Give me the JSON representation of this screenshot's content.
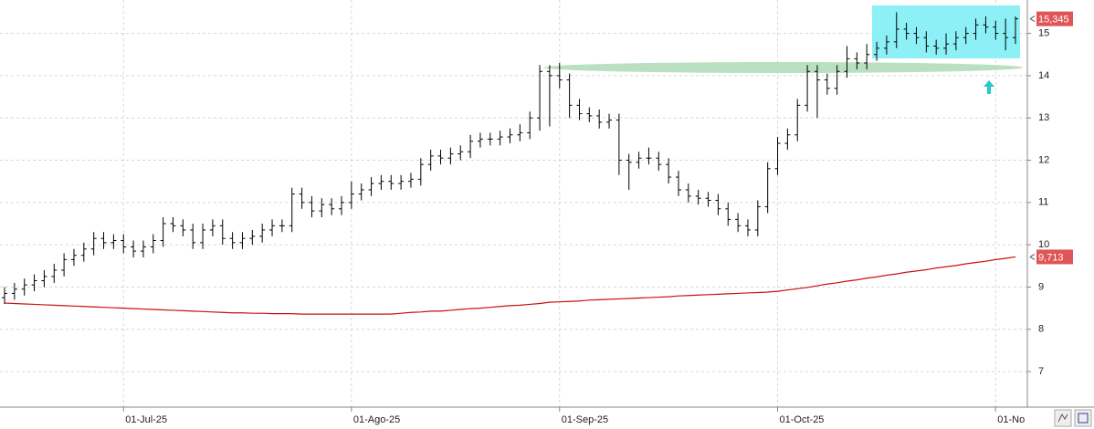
{
  "chart_data": {
    "type": "ohlc",
    "categories": [
      null,
      null,
      null,
      null,
      null,
      null,
      null,
      null,
      null,
      null,
      null,
      null,
      "01-Jul-25",
      null,
      null,
      null,
      null,
      null,
      null,
      null,
      null,
      null,
      null,
      null,
      null,
      null,
      null,
      null,
      null,
      null,
      null,
      null,
      null,
      null,
      null,
      "01-Ago-25",
      null,
      null,
      null,
      null,
      null,
      null,
      null,
      null,
      null,
      null,
      null,
      null,
      null,
      null,
      null,
      null,
      null,
      null,
      null,
      null,
      "01-Sep-25",
      null,
      null,
      null,
      null,
      null,
      null,
      null,
      null,
      null,
      null,
      null,
      null,
      null,
      null,
      null,
      null,
      null,
      null,
      null,
      null,
      null,
      "01-Oct-25",
      null,
      null,
      null,
      null,
      null,
      null,
      null,
      null,
      null,
      null,
      null,
      null,
      null,
      null,
      null,
      null,
      null,
      null,
      null,
      null,
      null,
      "01-No",
      null,
      null
    ],
    "open": [
      8.75,
      8.85,
      8.95,
      9.05,
      9.15,
      9.25,
      9.4,
      9.65,
      9.75,
      9.9,
      10.15,
      10.05,
      10.1,
      9.95,
      9.85,
      9.95,
      10.1,
      10.5,
      10.45,
      10.35,
      10.05,
      10.35,
      10.45,
      10.15,
      10.05,
      10.15,
      10.2,
      10.35,
      10.45,
      10.45,
      11.2,
      11.0,
      10.8,
      10.95,
      10.85,
      11.0,
      11.2,
      11.3,
      11.45,
      11.5,
      11.45,
      11.5,
      11.55,
      11.9,
      12.1,
      12.05,
      12.15,
      12.2,
      12.45,
      12.5,
      12.5,
      12.55,
      12.6,
      12.65,
      13.0,
      14.1,
      14.0,
      13.9,
      13.3,
      13.1,
      13.05,
      12.9,
      12.95,
      12.0,
      11.95,
      12.05,
      12.05,
      11.9,
      11.6,
      11.3,
      11.15,
      11.1,
      11.05,
      10.85,
      10.6,
      10.45,
      10.35,
      10.9,
      11.8,
      12.4,
      12.6,
      13.3,
      14.1,
      13.9,
      13.7,
      14.1,
      14.4,
      14.3,
      14.5,
      14.65,
      14.8,
      15.1,
      15.0,
      14.9,
      14.7,
      14.65,
      14.75,
      14.9,
      15.0,
      15.2,
      15.15,
      15.0,
      14.9
    ],
    "high": [
      9.0,
      9.1,
      9.2,
      9.3,
      9.4,
      9.55,
      9.8,
      9.9,
      10.05,
      10.3,
      10.3,
      10.25,
      10.25,
      10.1,
      10.1,
      10.25,
      10.65,
      10.65,
      10.6,
      10.5,
      10.5,
      10.6,
      10.6,
      10.3,
      10.3,
      10.35,
      10.5,
      10.6,
      10.6,
      11.35,
      11.35,
      11.15,
      11.1,
      11.1,
      11.15,
      11.5,
      11.45,
      11.6,
      11.65,
      11.65,
      11.65,
      11.7,
      12.05,
      12.25,
      12.25,
      12.3,
      12.35,
      12.6,
      12.65,
      12.65,
      12.7,
      12.75,
      12.85,
      13.15,
      14.25,
      14.25,
      14.3,
      14.05,
      13.45,
      13.25,
      13.2,
      13.1,
      13.1,
      12.15,
      12.2,
      12.3,
      12.2,
      12.05,
      11.75,
      11.45,
      11.3,
      11.25,
      11.2,
      11.0,
      10.75,
      10.6,
      11.05,
      11.95,
      12.55,
      12.75,
      13.45,
      14.25,
      14.25,
      14.05,
      14.25,
      14.7,
      14.55,
      14.75,
      14.8,
      14.95,
      15.5,
      15.25,
      15.15,
      15.05,
      14.85,
      15.0,
      15.05,
      15.15,
      15.35,
      15.4,
      15.3,
      15.35,
      15.4
    ],
    "low": [
      8.6,
      8.7,
      8.8,
      8.9,
      9.0,
      9.1,
      9.25,
      9.5,
      9.6,
      9.75,
      9.9,
      9.9,
      9.8,
      9.7,
      9.7,
      9.8,
      9.95,
      10.3,
      10.2,
      9.9,
      9.9,
      10.2,
      10.0,
      9.9,
      9.9,
      10.0,
      10.05,
      10.2,
      10.3,
      10.3,
      10.85,
      10.65,
      10.65,
      10.7,
      10.7,
      10.85,
      11.05,
      11.15,
      11.3,
      11.3,
      11.3,
      11.35,
      11.4,
      11.75,
      11.9,
      11.9,
      12.0,
      12.05,
      12.3,
      12.35,
      12.35,
      12.4,
      12.45,
      12.5,
      12.7,
      12.8,
      13.7,
      13.0,
      12.95,
      12.9,
      12.75,
      12.75,
      11.65,
      11.3,
      11.8,
      11.9,
      11.75,
      11.45,
      11.15,
      11.0,
      10.95,
      10.9,
      10.7,
      10.45,
      10.3,
      10.2,
      10.2,
      10.75,
      11.65,
      12.25,
      12.45,
      13.15,
      13.0,
      13.55,
      13.55,
      13.95,
      14.15,
      14.15,
      14.35,
      14.5,
      14.65,
      14.85,
      14.75,
      14.55,
      14.5,
      14.5,
      14.6,
      14.75,
      14.85,
      15.0,
      14.85,
      14.6,
      14.75
    ],
    "close": [
      8.85,
      8.95,
      9.05,
      9.15,
      9.25,
      9.4,
      9.65,
      9.75,
      9.9,
      10.15,
      10.05,
      10.1,
      9.95,
      9.85,
      9.95,
      10.1,
      10.5,
      10.45,
      10.35,
      10.05,
      10.35,
      10.45,
      10.15,
      10.05,
      10.15,
      10.2,
      10.35,
      10.45,
      10.45,
      11.2,
      11.0,
      10.8,
      10.95,
      10.85,
      11.0,
      11.2,
      11.3,
      11.45,
      11.5,
      11.45,
      11.5,
      11.55,
      11.9,
      12.1,
      12.05,
      12.15,
      12.2,
      12.45,
      12.5,
      12.5,
      12.55,
      12.6,
      12.65,
      13.0,
      14.1,
      14.0,
      13.9,
      13.3,
      13.1,
      13.05,
      12.9,
      12.95,
      12.0,
      11.95,
      12.05,
      12.05,
      11.9,
      11.6,
      11.3,
      11.15,
      11.1,
      11.05,
      10.85,
      10.6,
      10.45,
      10.35,
      10.9,
      11.8,
      12.4,
      12.6,
      13.3,
      14.1,
      13.9,
      13.7,
      14.1,
      14.4,
      14.3,
      14.5,
      14.65,
      14.8,
      15.1,
      15.0,
      14.9,
      14.7,
      14.65,
      14.75,
      14.9,
      15.0,
      15.2,
      15.15,
      15.0,
      14.9,
      15.345
    ],
    "color": "#000000",
    "series": [
      {
        "color": "#cc1111",
        "values": [
          8.62,
          8.61,
          8.6,
          8.59,
          8.58,
          8.57,
          8.56,
          8.55,
          8.54,
          8.53,
          8.52,
          8.51,
          8.5,
          8.49,
          8.48,
          8.47,
          8.46,
          8.45,
          8.44,
          8.43,
          8.42,
          8.41,
          8.4,
          8.39,
          8.39,
          8.38,
          8.38,
          8.37,
          8.37,
          8.37,
          8.36,
          8.36,
          8.36,
          8.36,
          8.36,
          8.36,
          8.36,
          8.36,
          8.36,
          8.36,
          8.38,
          8.4,
          8.41,
          8.43,
          8.43,
          8.45,
          8.47,
          8.49,
          8.5,
          8.52,
          8.54,
          8.56,
          8.57,
          8.59,
          8.61,
          8.64,
          8.65,
          8.66,
          8.67,
          8.69,
          8.7,
          8.71,
          8.72,
          8.73,
          8.74,
          8.75,
          8.76,
          8.77,
          8.79,
          8.8,
          8.81,
          8.82,
          8.83,
          8.84,
          8.85,
          8.86,
          8.87,
          8.88,
          8.9,
          8.93,
          8.96,
          8.99,
          9.03,
          9.07,
          9.1,
          9.14,
          9.17,
          9.21,
          9.24,
          9.28,
          9.31,
          9.35,
          9.38,
          9.41,
          9.45,
          9.48,
          9.51,
          9.55,
          9.58,
          9.61,
          9.65,
          9.68,
          9.713
        ]
      }
    ],
    "annotations": [
      {
        "value": 15.345,
        "label": "15,345",
        "color": "#e05555"
      },
      {
        "value": 9.713,
        "label": "9,713",
        "color": "#e05555"
      }
    ],
    "ylim": [
      6.16,
      15.79
    ],
    "yticks": [
      7,
      8,
      9,
      10,
      11,
      12,
      13,
      14,
      15
    ],
    "grid": true
  }
}
